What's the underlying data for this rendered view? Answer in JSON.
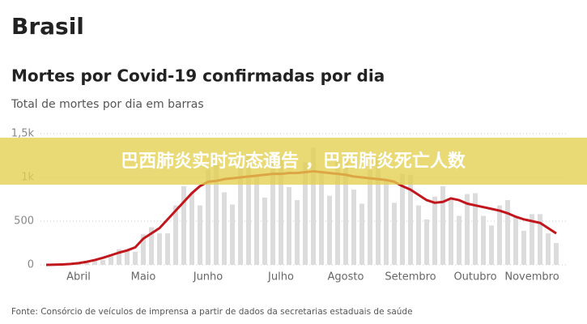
{
  "heading": "Brasil",
  "chart_data": {
    "type": "bar",
    "title": "Mortes por Covid-19 confirmadas por dia",
    "subtitle": "Total de mortes por dia em barras",
    "source": "Fonte: Consórcio de veículos de imprensa a partir de dados da secretarias estaduais de saúde",
    "categories": [
      null,
      null,
      null,
      null,
      "Abril",
      null,
      null,
      null,
      null,
      null,
      null,
      null,
      "Maio",
      null,
      null,
      null,
      null,
      null,
      null,
      null,
      "Junho",
      null,
      null,
      null,
      null,
      null,
      null,
      null,
      null,
      "Julho",
      null,
      null,
      null,
      null,
      null,
      null,
      null,
      "Agosto",
      null,
      null,
      null,
      null,
      null,
      null,
      null,
      "Setembro",
      null,
      null,
      null,
      null,
      null,
      null,
      null,
      "Outubro",
      null,
      null,
      null,
      null,
      null,
      null,
      "Novembro",
      null,
      null,
      null
    ],
    "series": [
      {
        "type": "bar",
        "color": "#dcdcdc",
        "values": [
          0,
          3,
          5,
          8,
          23,
          42,
          47,
          56,
          120,
          180,
          170,
          150,
          350,
          430,
          360,
          360,
          680,
          900,
          820,
          680,
          1090,
          1150,
          830,
          690,
          1100,
          1260,
          1020,
          770,
          1200,
          1250,
          890,
          740,
          1170,
          1340,
          1060,
          790,
          1200,
          1240,
          860,
          700,
          1090,
          1230,
          970,
          710,
          1040,
          1030,
          680,
          520,
          780,
          900,
          760,
          560,
          810,
          820,
          560,
          450,
          680,
          740,
          550,
          390,
          580,
          580,
          360,
          250
        ]
      },
      {
        "type": "line",
        "color": "#c0161c",
        "values": [
          0,
          2,
          5,
          10,
          20,
          35,
          55,
          80,
          110,
          140,
          165,
          200,
          300,
          360,
          420,
          520,
          620,
          720,
          820,
          900,
          950,
          960,
          980,
          990,
          1000,
          1010,
          1020,
          1030,
          1040,
          1040,
          1050,
          1050,
          1060,
          1070,
          1060,
          1050,
          1040,
          1030,
          1010,
          1000,
          990,
          980,
          970,
          950,
          900,
          860,
          800,
          740,
          710,
          720,
          760,
          740,
          700,
          680,
          660,
          640,
          620,
          590,
          550,
          520,
          500,
          480,
          420,
          360
        ]
      }
    ],
    "ylim": [
      0,
      1500
    ],
    "yticks": [
      0,
      500,
      {
        "value": 1000,
        "label": "1k"
      },
      {
        "value": 1500,
        "label": "1,5k"
      }
    ],
    "grid": true
  },
  "overlay_banner": {
    "text": "巴西肺炎实时动态通告 ，巴西肺炎死亡人数"
  }
}
